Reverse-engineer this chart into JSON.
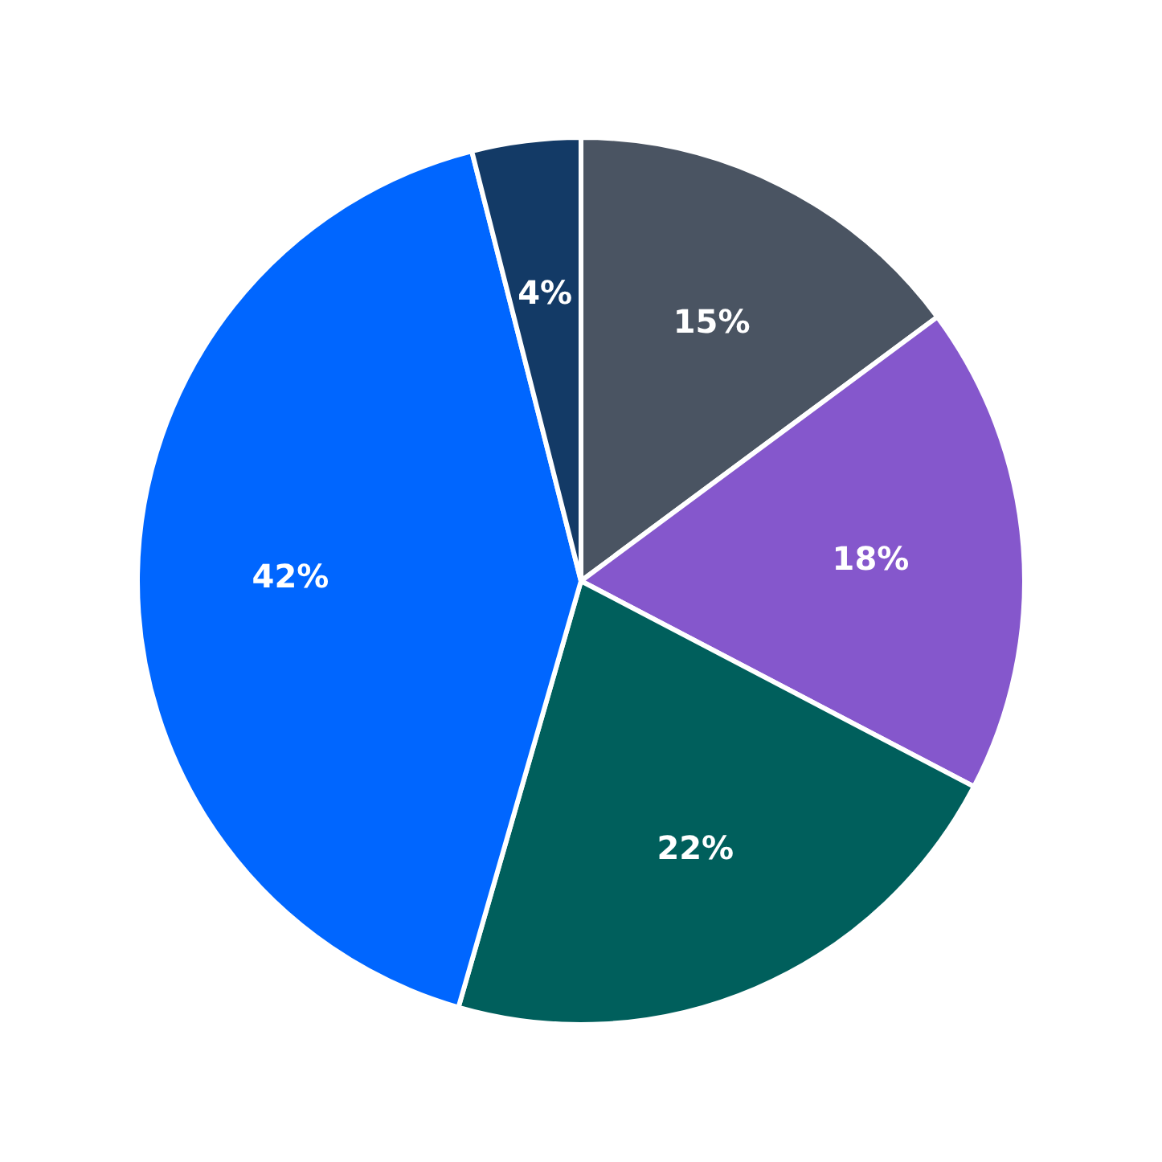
{
  "chart_data": {
    "type": "pie",
    "categories": [
      null,
      null,
      null,
      null,
      null
    ],
    "values": [
      15,
      18,
      22,
      42,
      4
    ],
    "colors": [
      "#4a5462",
      "#8557cc",
      "#005f5c",
      "#0066ff",
      "#133a66"
    ],
    "value_labels": [
      "15%",
      "18%",
      "22%",
      "42%",
      "4%"
    ]
  }
}
